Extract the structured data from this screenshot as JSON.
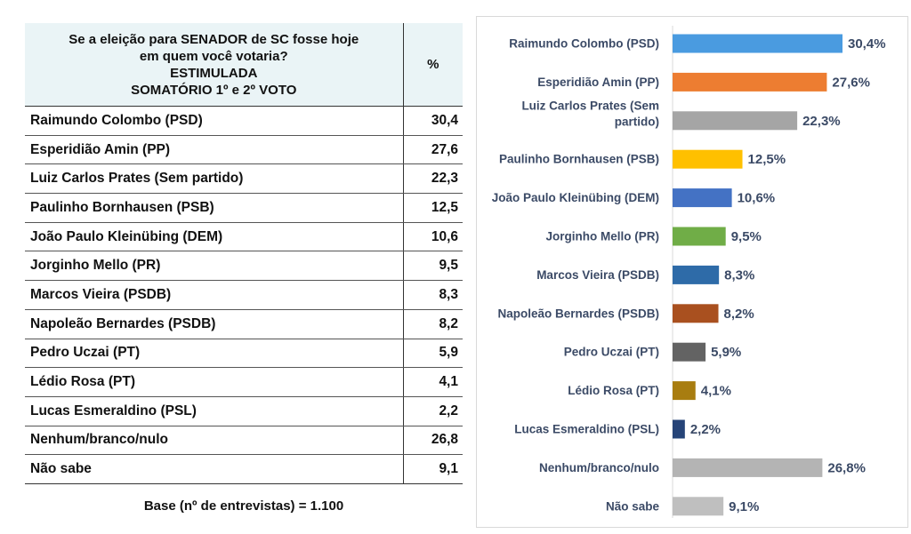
{
  "table": {
    "header_lines": [
      "Se a eleição para SENADOR de SC fosse hoje",
      "em quem você votaria?",
      "ESTIMULADA",
      "SOMATÓRIO 1º e 2º VOTO"
    ],
    "pct_header": "%",
    "rows": [
      {
        "name": "Raimundo Colombo (PSD)",
        "value": "30,4"
      },
      {
        "name": "Esperidião Amin (PP)",
        "value": "27,6"
      },
      {
        "name": "Luiz Carlos Prates (Sem partido)",
        "value": "22,3"
      },
      {
        "name": "Paulinho Bornhausen (PSB)",
        "value": "12,5"
      },
      {
        "name": "João Paulo Kleinübing (DEM)",
        "value": "10,6"
      },
      {
        "name": "Jorginho Mello (PR)",
        "value": "9,5"
      },
      {
        "name": "Marcos Vieira (PSDB)",
        "value": "8,3"
      },
      {
        "name": "Napoleão Bernardes (PSDB)",
        "value": "8,2"
      },
      {
        "name": "Pedro Uczai (PT)",
        "value": "5,9"
      },
      {
        "name": "Lédio Rosa (PT)",
        "value": "4,1"
      },
      {
        "name": "Lucas Esmeraldino (PSL)",
        "value": "2,2"
      },
      {
        "name": "Nenhum/branco/nulo",
        "value": "26,8"
      },
      {
        "name": "Não sabe",
        "value": "9,1"
      }
    ],
    "base_note": "Base (nº de entrevistas) = 1.100"
  },
  "chart_data": {
    "type": "bar",
    "orientation": "horizontal",
    "categories": [
      "Raimundo Colombo (PSD)",
      "Esperidião Amin (PP)",
      "Luiz Carlos Prates (Sem partido)",
      "Paulinho Bornhausen (PSB)",
      "João Paulo Kleinübing (DEM)",
      "Jorginho Mello (PR)",
      "Marcos Vieira (PSDB)",
      "Napoleão Bernardes (PSDB)",
      "Pedro Uczai (PT)",
      "Lédio Rosa (PT)",
      "Lucas Esmeraldino (PSL)",
      "Nenhum/branco/nulo",
      "Não sabe"
    ],
    "category_label_lines": [
      [
        "Raimundo Colombo (PSD)"
      ],
      [
        "Esperidião Amin (PP)"
      ],
      [
        "Luiz Carlos Prates (Sem",
        "partido)"
      ],
      [
        "Paulinho Bornhausen (PSB)"
      ],
      [
        "João Paulo Kleinübing (DEM)"
      ],
      [
        "Jorginho Mello (PR)"
      ],
      [
        "Marcos Vieira (PSDB)"
      ],
      [
        "Napoleão Bernardes (PSDB)"
      ],
      [
        "Pedro Uczai (PT)"
      ],
      [
        "Lédio Rosa (PT)"
      ],
      [
        "Lucas Esmeraldino (PSL)"
      ],
      [
        "Nenhum/branco/nulo"
      ],
      [
        "Não sabe"
      ]
    ],
    "values": [
      30.4,
      27.6,
      22.3,
      12.5,
      10.6,
      9.5,
      8.3,
      8.2,
      5.9,
      4.1,
      2.2,
      26.8,
      9.1
    ],
    "data_labels": [
      "30,4%",
      "27,6%",
      "22,3%",
      "12,5%",
      "10,6%",
      "9,5%",
      "8,3%",
      "8,2%",
      "5,9%",
      "4,1%",
      "2,2%",
      "26,8%",
      "9,1%"
    ],
    "colors": [
      "#4a9be0",
      "#ed7d31",
      "#a5a5a5",
      "#ffc000",
      "#4472c4",
      "#70ad47",
      "#2e6ba8",
      "#a9501f",
      "#636363",
      "#a87d10",
      "#264478",
      "#b4b4b4",
      "#bfbfbf"
    ],
    "xlim": [
      0,
      32
    ],
    "grid": false,
    "legend": "none"
  }
}
